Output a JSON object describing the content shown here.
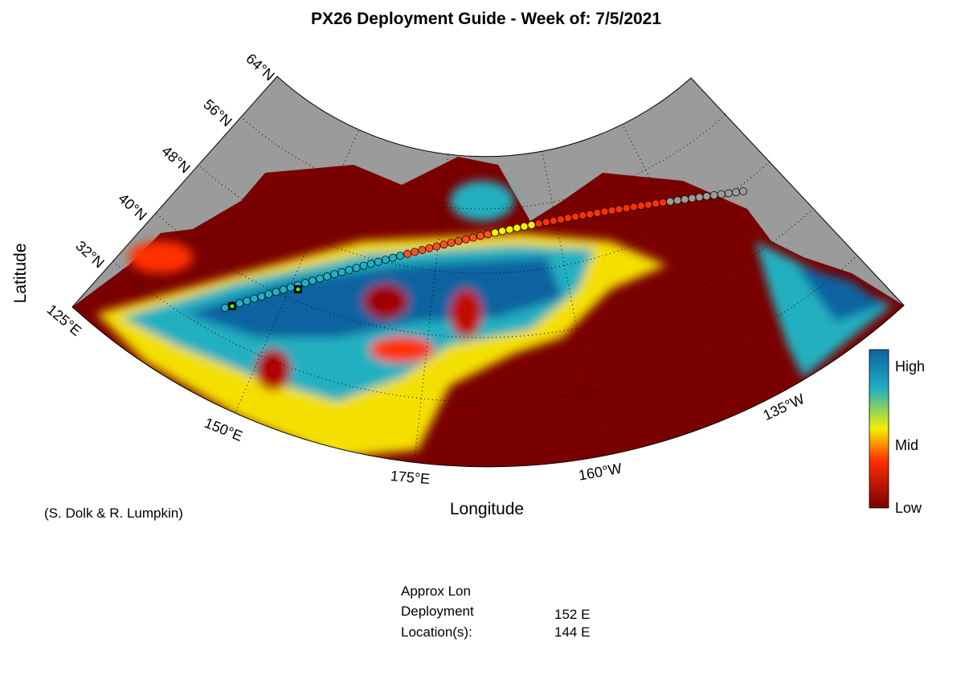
{
  "title": "PX26 Deployment Guide - Week of: 7/5/2021",
  "map": {
    "latitude_label": "Latitude",
    "longitude_label": "Longitude",
    "lat_labels": [
      "64°N",
      "56°N",
      "48°N",
      "40°N",
      "32°N"
    ],
    "lon_labels": [
      "125°E",
      "150°E",
      "175°E",
      "160°W",
      "135°W"
    ]
  },
  "colorbar": {
    "labels": [
      "High",
      "Mid",
      "Low"
    ]
  },
  "credit": "(S. Dolk & R. Lumpkin)",
  "deployment": {
    "header": "Approx Lon",
    "row_labels": [
      "Deployment",
      "Location(s):"
    ],
    "locations": [
      "152 E",
      "144 E"
    ]
  }
}
